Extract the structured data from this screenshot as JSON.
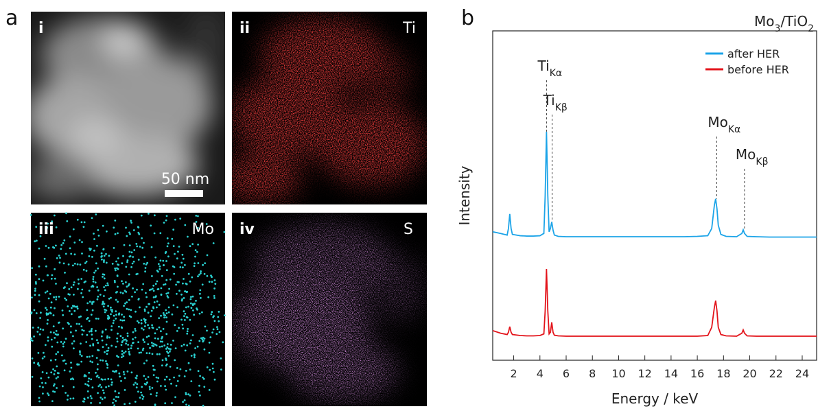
{
  "figure": {
    "panel_a": {
      "label": "a",
      "images": [
        {
          "label": "i",
          "scale_bar": "50 nm"
        },
        {
          "label": "ii",
          "element": "Ti"
        },
        {
          "label": "iii",
          "element": "Mo"
        },
        {
          "label": "iv",
          "element": "S"
        }
      ]
    },
    "panel_b": {
      "label": "b"
    }
  },
  "chart_data": {
    "type": "line",
    "title": [
      "Mo",
      "3",
      "/TiO",
      "2"
    ],
    "x_label": "Energy / keV",
    "y_label": "Intensity",
    "x": [
      0.4,
      1.0,
      1.5,
      1.6,
      1.7,
      1.8,
      1.9,
      2.5,
      3.0,
      3.5,
      4.0,
      4.3,
      4.4,
      4.5,
      4.6,
      4.7,
      4.8,
      4.9,
      5.0,
      5.1,
      5.4,
      6,
      7,
      8,
      9,
      10,
      11,
      12,
      13,
      14,
      15,
      16,
      16.8,
      17.1,
      17.3,
      17.4,
      17.5,
      17.6,
      17.8,
      18.2,
      19.0,
      19.4,
      19.5,
      19.6,
      19.8,
      20.5,
      21.5,
      22.5,
      23.5,
      24.5,
      25.1
    ],
    "series": [
      {
        "name": "after HER",
        "color": "#1ca4e8",
        "values": [
          39,
          38.5,
          38,
          40,
          44.4,
          40,
          38.2,
          37.8,
          37.7,
          37.7,
          37.8,
          38.5,
          50,
          69.4,
          50,
          39,
          40,
          42,
          39.5,
          38,
          37.6,
          37.5,
          37.5,
          37.5,
          37.5,
          37.5,
          37.5,
          37.5,
          37.5,
          37.5,
          37.5,
          37.6,
          37.8,
          40,
          47,
          49,
          46,
          41,
          38.2,
          37.6,
          37.5,
          38.5,
          39.6,
          38.5,
          37.6,
          37.5,
          37.4,
          37.4,
          37.4,
          37.4,
          37.4
        ]
      },
      {
        "name": "before HER",
        "color": "#e3141b",
        "values": [
          9,
          8.2,
          7.8,
          8.5,
          10.2,
          8.5,
          7.8,
          7.5,
          7.4,
          7.4,
          7.5,
          8,
          15,
          27.7,
          15,
          8,
          8.5,
          11.5,
          8.5,
          7.6,
          7.4,
          7.3,
          7.3,
          7.3,
          7.3,
          7.3,
          7.3,
          7.3,
          7.3,
          7.3,
          7.3,
          7.3,
          7.5,
          10,
          16,
          18.1,
          15,
          10,
          7.8,
          7.4,
          7.3,
          8.2,
          9.2,
          8.2,
          7.4,
          7.3,
          7.3,
          7.3,
          7.3,
          7.3,
          7.3
        ]
      }
    ],
    "annotations": [
      {
        "text": "Ti",
        "sub": "Kα",
        "x": 4.51
      },
      {
        "text": "Ti",
        "sub": "Kβ",
        "x": 4.93
      },
      {
        "text": "Mo",
        "sub": "Kα",
        "x": 17.48
      },
      {
        "text": "Mo",
        "sub": "Kβ",
        "x": 19.6
      }
    ],
    "xlim": [
      0.4,
      25.1
    ],
    "ylim": [
      0,
      100
    ],
    "xticks": [
      2,
      4,
      6,
      8,
      10,
      12,
      14,
      16,
      18,
      20,
      22,
      24
    ],
    "legend": "top-right"
  }
}
